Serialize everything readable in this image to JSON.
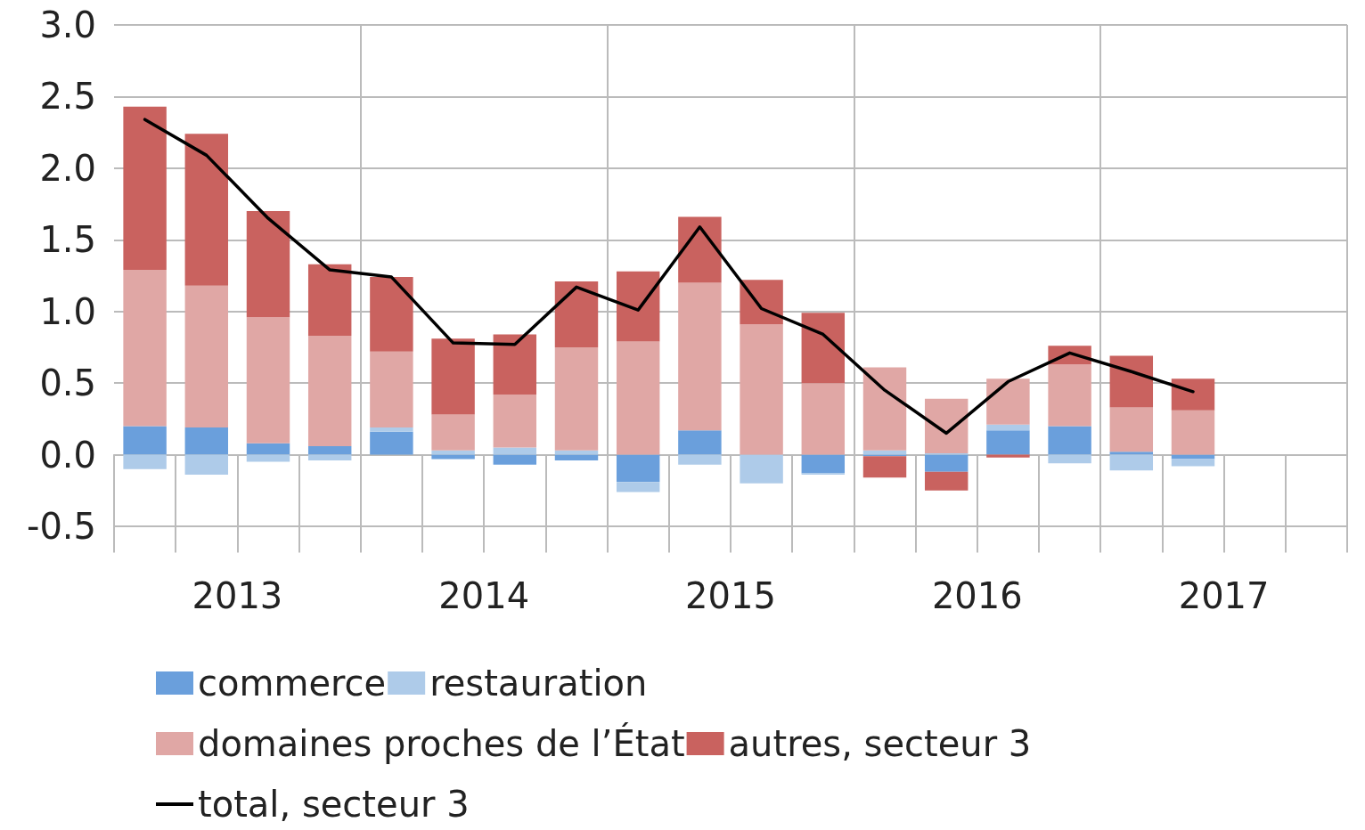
{
  "chart_data": {
    "type": "bar",
    "stacked": true,
    "categories": [
      null,
      null,
      null,
      null,
      null,
      null,
      null,
      null,
      null,
      null,
      null,
      null,
      null,
      null,
      null,
      null,
      null,
      null,
      null,
      null
    ],
    "annotations": [
      "2013",
      "2014",
      "2015",
      "2016",
      "2017"
    ],
    "series": [
      {
        "name": "commerce",
        "color": "#6a9fdc",
        "values": [
          0.2,
          0.19,
          0.08,
          0.06,
          0.16,
          -0.03,
          -0.07,
          -0.04,
          -0.19,
          0.17,
          0.0,
          -0.13,
          -0.01,
          -0.12,
          0.17,
          0.2,
          0.02,
          -0.03,
          null,
          null
        ]
      },
      {
        "name": "restauration",
        "color": "#aecbe9",
        "values": [
          -0.1,
          -0.14,
          -0.05,
          -0.04,
          0.03,
          0.03,
          0.05,
          0.03,
          -0.07,
          -0.07,
          -0.2,
          -0.01,
          0.03,
          0.01,
          0.04,
          -0.06,
          -0.11,
          -0.05,
          null,
          null
        ]
      },
      {
        "name": "domaines proches de l’État",
        "color": "#e0a7a5",
        "values": [
          1.09,
          0.99,
          0.88,
          0.77,
          0.53,
          0.25,
          0.37,
          0.72,
          0.79,
          1.03,
          0.91,
          0.5,
          0.58,
          0.38,
          0.32,
          0.43,
          0.31,
          0.31,
          null,
          null
        ]
      },
      {
        "name": "autres, secteur 3",
        "color": "#c9625f",
        "values": [
          1.14,
          1.06,
          0.74,
          0.5,
          0.52,
          0.53,
          0.42,
          0.46,
          0.49,
          0.46,
          0.31,
          0.49,
          -0.15,
          -0.13,
          -0.02,
          0.13,
          0.36,
          0.22,
          null,
          null
        ]
      },
      {
        "name": "total, secteur 3",
        "type": "line",
        "color": "#000000",
        "values": [
          2.34,
          2.09,
          1.65,
          1.29,
          1.24,
          0.78,
          0.77,
          1.17,
          1.01,
          1.59,
          1.02,
          0.84,
          0.45,
          0.15,
          0.51,
          0.71,
          0.58,
          0.44,
          null,
          null
        ]
      }
    ],
    "ylim": [
      -0.5,
      3.0
    ],
    "yticks": [
      {
        "value": -0.5,
        "label": "-0.5"
      },
      {
        "value": 0,
        "label": "0.0"
      },
      {
        "value": 0.5,
        "label": "0.5"
      },
      {
        "value": 1,
        "label": "1.0"
      },
      {
        "value": 1.5,
        "label": "1.5"
      },
      {
        "value": 2,
        "label": "2.0"
      },
      {
        "value": 2.5,
        "label": "2.5"
      },
      {
        "value": 3,
        "label": "3.0"
      }
    ],
    "grid": true,
    "legend": "bottom",
    "marker": "none",
    "line_style": "solid"
  }
}
